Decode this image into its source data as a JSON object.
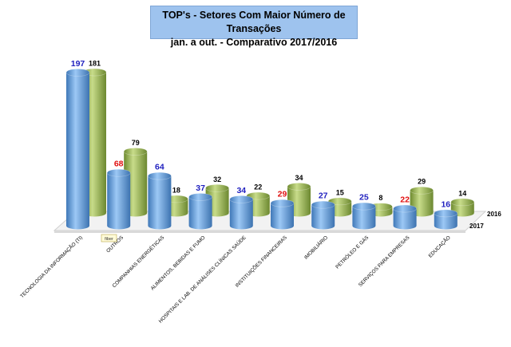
{
  "chart_data": {
    "type": "bar",
    "title": "TOP's - Setores Com Maior Número de Transações",
    "subtitle": "jan. a out. - Comparativo 2017/2016",
    "categories": [
      "TECNOLOGIA DA INFORMAÇÃO (TI)",
      "OUTROS",
      "COMPANHIAS ENERGÉTICAS",
      "ALIMENTOS, BEBIDAS E FUMO",
      "HOSPITAIS E LAB. DE ANÁLISES CLÍNICAS SAÚDE",
      "INSTITUIÇÕES FINANCEIRAS",
      "IMOBILIÁRIO",
      "PETRÓLEO E GÁS",
      "SERVIÇOS PARA EMPRESAS",
      "EDUCAÇÃO"
    ],
    "series": [
      {
        "name": "2017",
        "values": [
          197,
          68,
          64,
          37,
          34,
          29,
          27,
          25,
          22,
          16
        ],
        "color": "#5b9bd5",
        "label_colors": [
          "#1f1fbf",
          "#e01010",
          "#1f1fbf",
          "#1f1fbf",
          "#1f1fbf",
          "#e01010",
          "#1f1fbf",
          "#1f1fbf",
          "#e01010",
          "#1f1fbf"
        ]
      },
      {
        "name": "2016",
        "values": [
          181,
          79,
          18,
          32,
          22,
          34,
          15,
          8,
          29,
          14
        ],
        "color": "#9bbb59"
      }
    ],
    "ylim": [
      0,
      200
    ],
    "legend": "right",
    "grid": false
  },
  "tooltip": {
    "text": "fiber"
  }
}
